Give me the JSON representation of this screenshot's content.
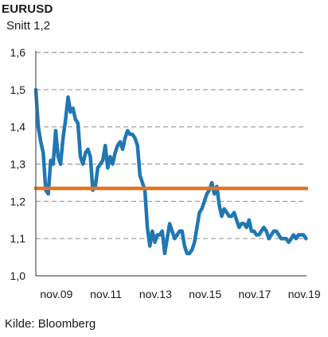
{
  "header": {
    "title": "EURUSD",
    "subtitle": "Snitt 1,2"
  },
  "footer": {
    "source": "Kilde: Bloomberg"
  },
  "chart_data": {
    "type": "line",
    "title": "EURUSD",
    "subtitle": "Snitt 1,2",
    "xlabel": "",
    "ylabel": "",
    "ylim": [
      1.0,
      1.6
    ],
    "xlim": [
      2009.0,
      2019.92
    ],
    "grid": true,
    "legend": "none",
    "y_ticks": [
      {
        "value": 1.0,
        "label": "1,0"
      },
      {
        "value": 1.1,
        "label": "1,1"
      },
      {
        "value": 1.2,
        "label": "1,2"
      },
      {
        "value": 1.3,
        "label": "1,3"
      },
      {
        "value": 1.4,
        "label": "1,4"
      },
      {
        "value": 1.5,
        "label": "1,5"
      },
      {
        "value": 1.6,
        "label": "1,6"
      }
    ],
    "x_ticks": [
      {
        "value": 2009.83,
        "label": "nov.09"
      },
      {
        "value": 2011.83,
        "label": "nov.11"
      },
      {
        "value": 2013.83,
        "label": "nov.13"
      },
      {
        "value": 2015.83,
        "label": "nov.15"
      },
      {
        "value": 2017.83,
        "label": "nov.17"
      },
      {
        "value": 2019.83,
        "label": "nov.19"
      }
    ],
    "colors": {
      "series": "#1F77B4",
      "average": "#E8731C",
      "grid": "#9a9a9a",
      "axis": "#555555"
    },
    "series": [
      {
        "x": [
          2009.0,
          2009.1,
          2009.2,
          2009.3,
          2009.4,
          2009.5,
          2009.6,
          2009.7,
          2009.8,
          2009.9,
          2010.0,
          2010.1,
          2010.2,
          2010.3,
          2010.4,
          2010.5,
          2010.6,
          2010.7,
          2010.8,
          2010.9,
          2011.0,
          2011.1,
          2011.2,
          2011.3,
          2011.4,
          2011.5,
          2011.6,
          2011.7,
          2011.8,
          2011.9,
          2012.0,
          2012.1,
          2012.2,
          2012.3,
          2012.4,
          2012.5,
          2012.6,
          2012.7,
          2012.8,
          2012.9,
          2013.0,
          2013.1,
          2013.2,
          2013.3,
          2013.4,
          2013.5,
          2013.6,
          2013.7,
          2013.8,
          2013.9,
          2014.0,
          2014.1,
          2014.2,
          2014.3,
          2014.4,
          2014.5,
          2014.6,
          2014.7,
          2014.8,
          2014.9,
          2015.0,
          2015.1,
          2015.2,
          2015.3,
          2015.4,
          2015.5,
          2015.6,
          2015.7,
          2015.8,
          2015.9,
          2016.0,
          2016.1,
          2016.2,
          2016.3,
          2016.4,
          2016.5,
          2016.6,
          2016.7,
          2016.8,
          2016.9,
          2017.0,
          2017.1,
          2017.2,
          2017.3,
          2017.4,
          2017.5,
          2017.6,
          2017.7,
          2017.8,
          2017.9,
          2018.0,
          2018.1,
          2018.2,
          2018.3,
          2018.4,
          2018.5,
          2018.6,
          2018.7,
          2018.8,
          2018.9,
          2019.0,
          2019.1,
          2019.2,
          2019.3,
          2019.4,
          2019.5,
          2019.6,
          2019.7,
          2019.8,
          2019.9
        ],
        "values": [
          1.5,
          1.4,
          1.36,
          1.33,
          1.23,
          1.22,
          1.31,
          1.3,
          1.39,
          1.32,
          1.3,
          1.37,
          1.42,
          1.48,
          1.44,
          1.45,
          1.42,
          1.41,
          1.32,
          1.3,
          1.33,
          1.34,
          1.32,
          1.23,
          1.24,
          1.29,
          1.3,
          1.31,
          1.35,
          1.29,
          1.32,
          1.3,
          1.33,
          1.35,
          1.36,
          1.34,
          1.37,
          1.39,
          1.38,
          1.38,
          1.37,
          1.35,
          1.27,
          1.25,
          1.23,
          1.13,
          1.08,
          1.12,
          1.09,
          1.11,
          1.11,
          1.12,
          1.06,
          1.1,
          1.14,
          1.12,
          1.1,
          1.11,
          1.12,
          1.12,
          1.08,
          1.06,
          1.06,
          1.07,
          1.09,
          1.13,
          1.17,
          1.18,
          1.2,
          1.22,
          1.23,
          1.25,
          1.22,
          1.24,
          1.19,
          1.16,
          1.18,
          1.17,
          1.16,
          1.16,
          1.17,
          1.15,
          1.13,
          1.14,
          1.14,
          1.13,
          1.15,
          1.12,
          1.12,
          1.11,
          1.11,
          1.12,
          1.13,
          1.12,
          1.1,
          1.11,
          1.12,
          1.12,
          1.11,
          1.1,
          1.1,
          1.1,
          1.09,
          1.1,
          1.11,
          1.1,
          1.11,
          1.11,
          1.11,
          1.1
        ]
      },
      {
        "x": [
          2009.0,
          2019.92
        ],
        "values": [
          1.235,
          1.235
        ]
      }
    ]
  }
}
